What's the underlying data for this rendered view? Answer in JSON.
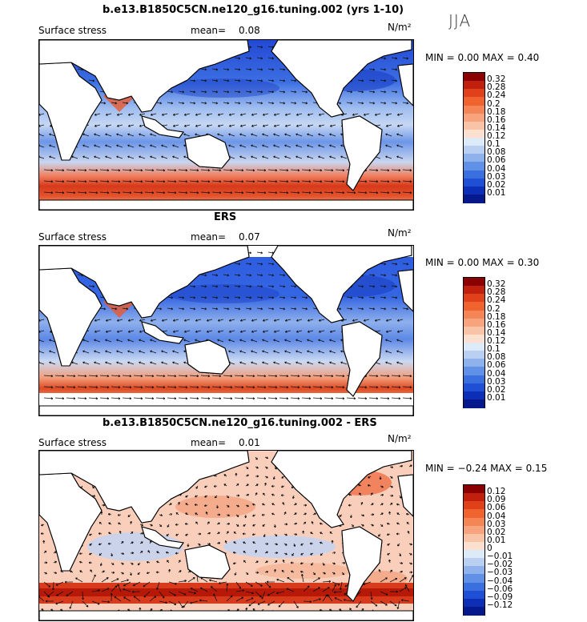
{
  "season": "JJA",
  "panels": [
    {
      "title": "b.e13.B1850C5CN.ne120_g16.tuning.002 (yrs 1-10)",
      "field": "Surface stress",
      "mean_label": "mean=",
      "mean_value": "0.08",
      "units": "N/m²",
      "minmax": "MIN =   0.00  MAX =    0.40",
      "colorbar_labels": [
        "0.32",
        "0.28",
        "0.24",
        "0.2",
        "0.18",
        "0.16",
        "0.14",
        "0.12",
        "0.1",
        "0.08",
        "0.06",
        "0.04",
        "0.03",
        "0.02",
        "0.01"
      ],
      "colorbar_colors": [
        "#8b0000",
        "#c1200e",
        "#e0401a",
        "#f0622e",
        "#f48555",
        "#f7a47e",
        "#f9c3a8",
        "#fbe0d0",
        "#ddeaf7",
        "#b9d0f2",
        "#8fb2ec",
        "#6191e7",
        "#3a6fe0",
        "#1f4fd4",
        "#0c2fb5",
        "#05188c"
      ],
      "style": "model"
    },
    {
      "title": "ERS",
      "field": "Surface stress",
      "mean_label": "mean=",
      "mean_value": "0.07",
      "units": "N/m²",
      "minmax": "MIN =   0.00  MAX =    0.30",
      "colorbar_labels": [
        "0.32",
        "0.28",
        "0.24",
        "0.2",
        "0.18",
        "0.16",
        "0.14",
        "0.12",
        "0.1",
        "0.08",
        "0.06",
        "0.04",
        "0.03",
        "0.02",
        "0.01"
      ],
      "colorbar_colors": [
        "#8b0000",
        "#c1200e",
        "#e0401a",
        "#f0622e",
        "#f48555",
        "#f7a47e",
        "#f9c3a8",
        "#fbe0d0",
        "#ddeaf7",
        "#b9d0f2",
        "#8fb2ec",
        "#6191e7",
        "#3a6fe0",
        "#1f4fd4",
        "#0c2fb5",
        "#05188c"
      ],
      "style": "obs"
    },
    {
      "title": "b.e13.B1850C5CN.ne120_g16.tuning.002 - ERS",
      "field": "Surface stress",
      "mean_label": "mean=",
      "mean_value": "0.01",
      "units": "N/m²",
      "minmax": "MIN =  −0.24  MAX =    0.15",
      "colorbar_labels": [
        "0.12",
        "0.09",
        "0.06",
        "0.04",
        "0.03",
        "0.02",
        "0.01",
        "0",
        "−0.01",
        "−0.02",
        "−0.03",
        "−0.04",
        "−0.06",
        "−0.09",
        "−0.12"
      ],
      "colorbar_colors": [
        "#8b0000",
        "#c1200e",
        "#e0401a",
        "#f0622e",
        "#f48555",
        "#f7a47e",
        "#f9c3a8",
        "#fbe0d0",
        "#ddeaf7",
        "#b9d0f2",
        "#8fb2ec",
        "#6191e7",
        "#3a6fe0",
        "#1f4fd4",
        "#0c2fb5",
        "#05188c"
      ],
      "style": "diff"
    }
  ]
}
